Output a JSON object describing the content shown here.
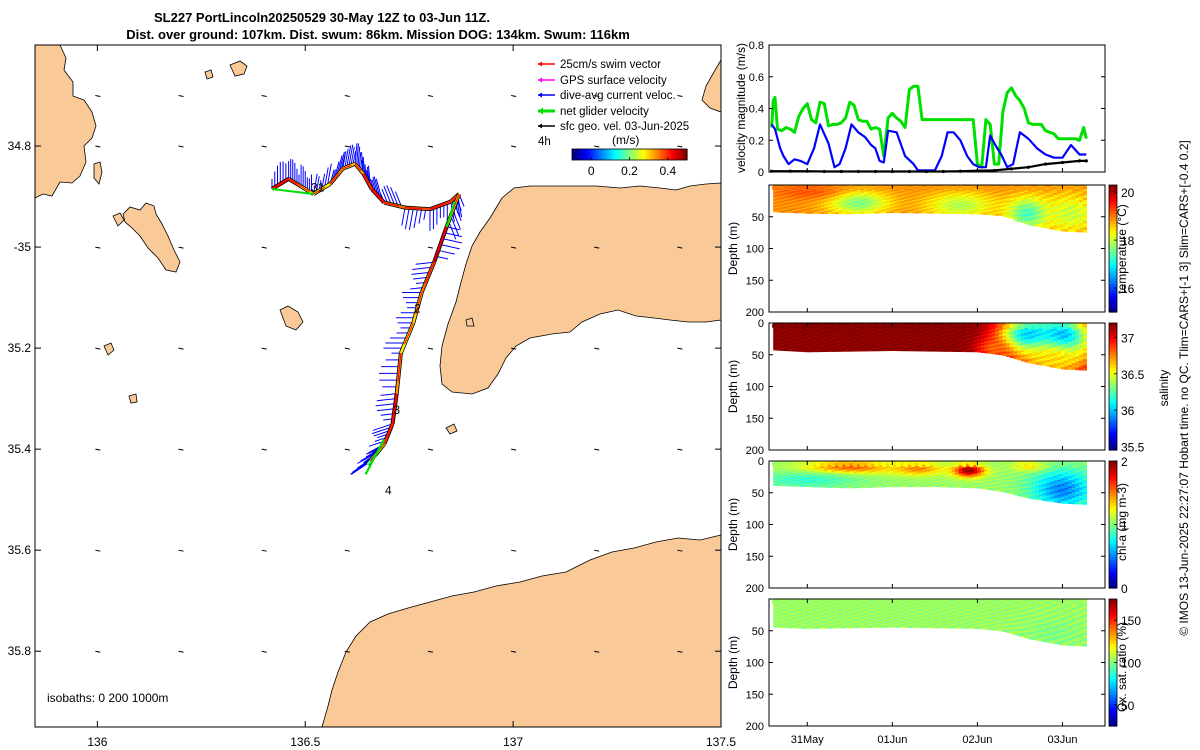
{
  "title": {
    "line1": "SL227 PortLincoln20250529 30-May 12Z to 03-Jun 11Z.",
    "line2": "Dist. over ground: 107km. Dist. swum: 86km. Mission DOG: 134km. Swum: 116km"
  },
  "side_note": "© IMOS 13-Jun-2025 22:27:07 Hobart time. no QC. Tlim=CARS+[-1 3] Slim=CARS+[-0.4 0.2]",
  "colors": {
    "land": "#f9c998",
    "swim": "#ff0000",
    "gps": "#ff00ff",
    "dive_avg": "#0000ff",
    "net": "#00e000",
    "sfc_geo": "#000000"
  },
  "chart_data": [
    {
      "type": "map",
      "name": "track-map",
      "xlim": [
        135.85,
        137.5
      ],
      "ylim": [
        -35.95,
        -34.6
      ],
      "x_ticks": [
        136,
        136.5,
        137,
        137.5
      ],
      "x_tick_labels": [
        "136",
        "136.5",
        "137",
        "137.5"
      ],
      "y_ticks": [
        -34.8,
        -35.0,
        -35.2,
        -35.4,
        -35.6,
        -35.8
      ],
      "y_tick_labels": [
        "34.8",
        "-35",
        "35.2",
        "35.4",
        "35.6",
        "35.8"
      ],
      "legend": {
        "placement": "top-right",
        "entries": [
          {
            "key": "swim",
            "label": "25cm/s swim vector"
          },
          {
            "key": "gps",
            "label": "GPS surface velocity"
          },
          {
            "key": "dive_avg",
            "label": "dive-avg current veloc."
          },
          {
            "key": "net",
            "label": "net glider velocity"
          },
          {
            "key": "sfc_geo",
            "label": "sfc geo. vel. 03-Jun-2025"
          }
        ],
        "scale_label": "4h"
      },
      "speed_colorbar": {
        "title": "(m/s)",
        "range": [
          -0.1,
          0.5
        ],
        "ticks": [
          0,
          0.2,
          0.4
        ],
        "tick_labels": [
          "0",
          "0.2",
          "0.4"
        ]
      },
      "day_labels": [
        {
          "text": "31",
          "lon": 136.53,
          "lat": -34.89
        },
        {
          "text": "2",
          "lon": 136.77,
          "lat": -35.13
        },
        {
          "text": "3",
          "lon": 136.72,
          "lat": -35.33
        },
        {
          "text": "4",
          "lon": 136.7,
          "lat": -35.49
        }
      ],
      "track": [
        [
          136.42,
          -34.885
        ],
        [
          136.46,
          -34.865
        ],
        [
          136.49,
          -34.88
        ],
        [
          136.52,
          -34.895
        ],
        [
          136.56,
          -34.875
        ],
        [
          136.59,
          -34.845
        ],
        [
          136.62,
          -34.835
        ],
        [
          136.64,
          -34.855
        ],
        [
          136.66,
          -34.885
        ],
        [
          136.69,
          -34.912
        ],
        [
          136.74,
          -34.922
        ],
        [
          136.8,
          -34.925
        ],
        [
          136.85,
          -34.91
        ],
        [
          136.87,
          -34.895
        ],
        [
          136.84,
          -34.96
        ],
        [
          136.81,
          -35.03
        ],
        [
          136.78,
          -35.09
        ],
        [
          136.76,
          -35.15
        ],
        [
          136.73,
          -35.21
        ],
        [
          136.72,
          -35.29
        ],
        [
          136.71,
          -35.35
        ],
        [
          136.69,
          -35.39
        ],
        [
          136.67,
          -35.41
        ],
        [
          136.65,
          -35.43
        ]
      ],
      "isobath_label": "isobaths: 0   200  1000m"
    },
    {
      "type": "line",
      "name": "velocity-magnitude",
      "ylabel": "velocity magnitude (m/s)",
      "ylim": [
        0,
        0.8
      ],
      "y_ticks": [
        0,
        0.2,
        0.4,
        0.6,
        0.8
      ],
      "y_tick_labels": [
        "0",
        "0.2",
        "0.4",
        "0.6",
        "0.8"
      ],
      "xlim": [
        30.5,
        34.5
      ],
      "series": [
        {
          "name": "net glider velocity",
          "color": "#00e000",
          "x": [
            30.58,
            30.6,
            30.62,
            30.65,
            30.7,
            30.75,
            30.8,
            30.85,
            30.9,
            30.95,
            31.0,
            31.05,
            31.1,
            31.15,
            31.2,
            31.25,
            31.3,
            31.35,
            31.4,
            31.45,
            31.5,
            31.55,
            31.6,
            31.65,
            31.7,
            31.75,
            31.8,
            31.85,
            31.9,
            31.95,
            32.0,
            32.05,
            32.1,
            32.15,
            32.2,
            32.25,
            32.3,
            32.35,
            32.4,
            32.45,
            32.5,
            32.55,
            32.6,
            32.65,
            32.7,
            32.75,
            32.8,
            32.85,
            32.9,
            32.95,
            33.0,
            33.05,
            33.1,
            33.15,
            33.2,
            33.25,
            33.3,
            33.35,
            33.4,
            33.45,
            33.5,
            33.55,
            33.6,
            33.65,
            33.7,
            33.75,
            33.8,
            33.85,
            33.9,
            33.95,
            34.0,
            34.05,
            34.1,
            34.15,
            34.2,
            34.25,
            34.28
          ],
          "y": [
            0.28,
            0.45,
            0.47,
            0.27,
            0.26,
            0.28,
            0.27,
            0.25,
            0.35,
            0.4,
            0.43,
            0.33,
            0.31,
            0.44,
            0.43,
            0.29,
            0.3,
            0.3,
            0.31,
            0.34,
            0.44,
            0.42,
            0.33,
            0.32,
            0.32,
            0.27,
            0.28,
            0.27,
            0.1,
            0.34,
            0.37,
            0.34,
            0.32,
            0.28,
            0.52,
            0.54,
            0.54,
            0.33,
            0.33,
            0.33,
            0.33,
            0.33,
            0.33,
            0.33,
            0.33,
            0.33,
            0.33,
            0.33,
            0.33,
            0.33,
            0.05,
            0.03,
            0.33,
            0.3,
            0.05,
            0.05,
            0.38,
            0.5,
            0.53,
            0.48,
            0.45,
            0.4,
            0.31,
            0.3,
            0.3,
            0.3,
            0.26,
            0.25,
            0.24,
            0.21,
            0.21,
            0.21,
            0.21,
            0.21,
            0.2,
            0.28,
            0.21
          ]
        },
        {
          "name": "dive-avg current veloc.",
          "color": "#0000ff",
          "x": [
            30.58,
            30.62,
            30.68,
            30.72,
            30.78,
            30.85,
            30.92,
            31.0,
            31.08,
            31.15,
            31.25,
            31.32,
            31.38,
            31.45,
            31.52,
            31.6,
            31.68,
            31.75,
            31.8,
            31.85,
            31.9,
            31.95,
            32.05,
            32.15,
            32.25,
            32.3,
            32.4,
            32.5,
            32.58,
            32.65,
            32.72,
            32.8,
            32.88,
            32.95,
            33.02,
            33.1,
            33.15,
            33.2,
            33.28,
            33.35,
            33.42,
            33.5,
            33.6,
            33.7,
            33.8,
            33.9,
            34.0,
            34.1,
            34.2,
            34.28
          ],
          "y": [
            0.3,
            0.27,
            0.15,
            0.1,
            0.05,
            0.08,
            0.07,
            0.05,
            0.15,
            0.3,
            0.18,
            0.03,
            0.05,
            0.15,
            0.3,
            0.25,
            0.22,
            0.17,
            0.15,
            0.07,
            0.06,
            0.26,
            0.25,
            0.1,
            0.05,
            0.01,
            0.01,
            0.01,
            0.1,
            0.25,
            0.25,
            0.2,
            0.1,
            0.05,
            0.03,
            0.03,
            0.23,
            0.18,
            0.11,
            0.03,
            0.05,
            0.25,
            0.21,
            0.15,
            0.11,
            0.09,
            0.09,
            0.17,
            0.11,
            0.11
          ]
        },
        {
          "name": "sfc geo. vel.",
          "color": "#000000",
          "x": [
            30.58,
            30.8,
            31.0,
            31.2,
            31.4,
            31.6,
            31.8,
            32.0,
            32.2,
            32.4,
            32.6,
            32.8,
            33.0,
            33.2,
            33.4,
            33.6,
            33.8,
            34.0,
            34.2,
            34.28
          ],
          "y": [
            0.005,
            0.005,
            0.005,
            0.003,
            0.003,
            0.003,
            0.003,
            0.003,
            0.003,
            0.003,
            0.003,
            0.005,
            0.008,
            0.01,
            0.02,
            0.03,
            0.05,
            0.06,
            0.07,
            0.07
          ]
        }
      ]
    },
    {
      "type": "heatmap",
      "name": "temperature-section",
      "ylabel": "Depth (m)",
      "ylim": [
        0,
        200
      ],
      "y_ticks": [
        50,
        100,
        150,
        200
      ],
      "y_tick_labels": [
        "50",
        "100",
        "150",
        "200"
      ],
      "colorbar_label": "temperature (°C)",
      "clim": [
        15,
        20.3
      ],
      "cb_ticks": [
        16,
        18,
        20
      ],
      "cb_tick_labels": [
        "16",
        "18",
        "20"
      ],
      "bottom_x": [
        30.6,
        31.0,
        31.5,
        32.0,
        32.5,
        33.0,
        33.3,
        33.6,
        34.0,
        34.28
      ],
      "bottom_depth": [
        42,
        44,
        45,
        43,
        44,
        45,
        48,
        62,
        72,
        74
      ],
      "base_value": 18.9,
      "blobs": [
        {
          "x": 31.6,
          "d": 28,
          "v": 17.6,
          "rx": 0.35,
          "rd": 18
        },
        {
          "x": 32.8,
          "d": 32,
          "v": 17.9,
          "rx": 0.4,
          "rd": 20
        },
        {
          "x": 33.6,
          "d": 45,
          "v": 17.3,
          "rx": 0.25,
          "rd": 25
        },
        {
          "x": 34.1,
          "d": 45,
          "v": 18.0,
          "rx": 0.3,
          "rd": 30
        },
        {
          "x": 31.0,
          "d": 10,
          "v": 19.2,
          "rx": 0.4,
          "rd": 12
        }
      ]
    },
    {
      "type": "heatmap",
      "name": "salinity-section",
      "ylabel": "Depth (m)",
      "ylim": [
        0,
        200
      ],
      "y_ticks": [
        0,
        50,
        100,
        150,
        200
      ],
      "y_tick_labels": [
        "0",
        "50",
        "100",
        "150",
        "200"
      ],
      "colorbar_label": "salinity",
      "clim": [
        35.45,
        37.2
      ],
      "cb_ticks": [
        35.5,
        36,
        36.5,
        37
      ],
      "cb_tick_labels": [
        "35.5",
        "36",
        "36.5",
        "37"
      ],
      "bottom_x": [
        30.6,
        31.0,
        31.5,
        32.0,
        32.5,
        33.0,
        33.3,
        33.6,
        34.0,
        34.28
      ],
      "bottom_depth": [
        42,
        45,
        44,
        43,
        44,
        45,
        50,
        62,
        72,
        74
      ],
      "base_value": 37.2,
      "blobs": [
        {
          "x": 33.6,
          "d": 20,
          "v": 36.0,
          "rx": 0.35,
          "rd": 30
        },
        {
          "x": 34.0,
          "d": 25,
          "v": 35.9,
          "rx": 0.35,
          "rd": 40
        },
        {
          "x": 33.9,
          "d": 55,
          "v": 36.6,
          "rx": 0.4,
          "rd": 25
        },
        {
          "x": 33.2,
          "d": 40,
          "v": 36.8,
          "rx": 0.2,
          "rd": 15
        }
      ]
    },
    {
      "type": "heatmap",
      "name": "chla-section",
      "ylabel": "Depth (m)",
      "ylim": [
        0,
        200
      ],
      "y_ticks": [
        0,
        50,
        100,
        150,
        200
      ],
      "y_tick_labels": [
        "0",
        "50",
        "100",
        "150",
        "200"
      ],
      "colorbar_label": "chl-a (mg m-3)",
      "clim": [
        0,
        2
      ],
      "cb_ticks": [
        0,
        1,
        2
      ],
      "cb_tick_labels": [
        "0",
        "1",
        "2"
      ],
      "bottom_x": [
        30.6,
        31.0,
        31.5,
        32.0,
        32.5,
        33.0,
        33.3,
        33.6,
        34.0,
        34.28
      ],
      "bottom_depth": [
        38,
        40,
        42,
        40,
        40,
        42,
        48,
        58,
        66,
        68
      ],
      "base_value": 1.05,
      "blobs": [
        {
          "x": 32.9,
          "d": 15,
          "v": 2.0,
          "rx": 0.18,
          "rd": 10
        },
        {
          "x": 31.5,
          "d": 10,
          "v": 1.6,
          "rx": 0.5,
          "rd": 10
        },
        {
          "x": 32.3,
          "d": 12,
          "v": 1.5,
          "rx": 0.3,
          "rd": 10
        },
        {
          "x": 31.0,
          "d": 30,
          "v": 0.85,
          "rx": 0.6,
          "rd": 12
        },
        {
          "x": 34.0,
          "d": 45,
          "v": 0.5,
          "rx": 0.35,
          "rd": 30
        },
        {
          "x": 33.6,
          "d": 8,
          "v": 1.3,
          "rx": 0.2,
          "rd": 8
        }
      ]
    },
    {
      "type": "heatmap",
      "name": "oxsat-section",
      "ylabel": "Depth (m)",
      "ylim": [
        0,
        200
      ],
      "y_ticks": [
        50,
        100,
        150,
        200
      ],
      "y_tick_labels": [
        "50",
        "100",
        "150",
        "200"
      ],
      "colorbar_label": "Ox. sat. ratio (%)",
      "clim": [
        25,
        175
      ],
      "cb_ticks": [
        50,
        100,
        150
      ],
      "cb_tick_labels": [
        "50",
        "100",
        "150"
      ],
      "bottom_x": [
        30.6,
        31.0,
        31.5,
        32.0,
        32.5,
        33.0,
        33.3,
        33.6,
        34.0,
        34.28
      ],
      "bottom_depth": [
        44,
        46,
        45,
        44,
        45,
        46,
        50,
        62,
        72,
        74
      ],
      "base_value": 104,
      "blobs": [
        {
          "x": 33.9,
          "d": 55,
          "v": 100,
          "rx": 0.3,
          "rd": 20
        }
      ]
    }
  ],
  "time_axis": {
    "ticks": [
      31,
      32,
      33,
      34
    ],
    "tick_labels": [
      "31May",
      "01Jun",
      "02Jun",
      "03Jun"
    ]
  }
}
